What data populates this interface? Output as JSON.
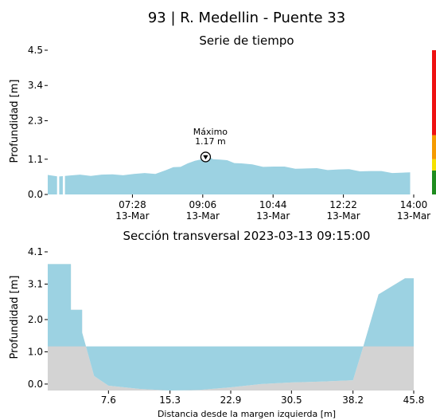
{
  "figure": {
    "title": "93 | R. Medellin - Puente 33"
  },
  "chart_data": [
    {
      "type": "area",
      "title": "Serie de tiempo",
      "ylabel": "Profundidad [m]",
      "xlabel": "",
      "ylim": [
        0,
        4.5
      ],
      "yticks": [
        "0.0",
        "1.1",
        "2.3",
        "3.4",
        "4.5"
      ],
      "ytick_values": [
        0,
        1.1,
        2.3,
        3.4,
        4.5
      ],
      "xlim_minutes": [
        330,
        840
      ],
      "xticks": [
        {
          "minute": 448,
          "time": "07:28",
          "date": "13-Mar"
        },
        {
          "minute": 546,
          "time": "09:06",
          "date": "13-Mar"
        },
        {
          "minute": 644,
          "time": "10:44",
          "date": "13-Mar"
        },
        {
          "minute": 742,
          "time": "12:22",
          "date": "13-Mar"
        },
        {
          "minute": 840,
          "time": "14:00",
          "date": "13-Mar"
        }
      ],
      "series": [
        {
          "color": "#9cd2e2",
          "x_minutes": [
            330,
            345,
            360,
            375,
            390,
            405,
            420,
            435,
            450,
            465,
            480,
            495,
            505,
            515,
            525,
            535,
            545,
            550,
            555,
            560,
            570,
            580,
            590,
            600,
            615,
            630,
            645,
            660,
            675,
            690,
            705,
            720,
            735,
            750,
            765,
            780,
            795,
            810,
            825,
            835
          ],
          "values": [
            0.58,
            0.58,
            0.58,
            0.59,
            0.6,
            0.61,
            0.6,
            0.62,
            0.63,
            0.64,
            0.66,
            0.75,
            0.82,
            0.88,
            0.96,
            1.02,
            1.12,
            1.17,
            1.15,
            1.12,
            1.08,
            1.04,
            1.0,
            0.96,
            0.91,
            0.88,
            0.86,
            0.84,
            0.82,
            0.8,
            0.79,
            0.78,
            0.77,
            0.76,
            0.74,
            0.72,
            0.7,
            0.69,
            0.67,
            0.66
          ]
        }
      ],
      "gaps_minutes": [
        [
          343,
          346
        ],
        [
          351,
          354
        ]
      ],
      "annotation": {
        "label": "Máximo",
        "value_text": "1.17 m",
        "x_minute": 550,
        "value": 1.17
      },
      "threshold_bar": [
        {
          "from": 0,
          "to": 0.75,
          "color": "#1e8c1e"
        },
        {
          "from": 0.75,
          "to": 1.1,
          "color": "#f5e100"
        },
        {
          "from": 1.1,
          "to": 1.85,
          "color": "#f59b00"
        },
        {
          "from": 1.85,
          "to": 4.5,
          "color": "#ee1111"
        }
      ]
    },
    {
      "type": "area",
      "title": "Sección transversal 2023-03-13 09:15:00",
      "xlabel": "Distancia desde la margen izquierda [m]",
      "ylabel": "Profundidad [m]",
      "xlim": [
        0,
        45.8
      ],
      "ylim": [
        -0.2,
        4.1
      ],
      "xticks": [
        "7.6",
        "15.3",
        "22.9",
        "30.5",
        "38.2",
        "45.8"
      ],
      "xtick_values": [
        7.6,
        15.3,
        22.9,
        30.5,
        38.2,
        45.8
      ],
      "yticks": [
        "0.0",
        "1.0",
        "2.0",
        "3.1",
        "4.1"
      ],
      "ytick_values": [
        0,
        1.0,
        2.0,
        3.1,
        4.1
      ],
      "water_level": 1.17,
      "water_color": "#9cd2e2",
      "ground_color": "#d3d3d3",
      "bed_profile": {
        "x": [
          0,
          2.9,
          2.9,
          4.3,
          4.3,
          5.8,
          7.6,
          11.5,
          15.3,
          19.1,
          22.9,
          26.7,
          30.5,
          34.3,
          38.2,
          39.5,
          41.4,
          41.4,
          44.7,
          44.7,
          45.8
        ],
        "y": [
          3.72,
          3.72,
          2.3,
          2.3,
          1.6,
          0.25,
          -0.05,
          -0.15,
          -0.2,
          -0.18,
          -0.1,
          0.0,
          0.05,
          0.08,
          0.12,
          1.17,
          2.78,
          2.78,
          3.28,
          3.28,
          3.28
        ]
      }
    }
  ]
}
